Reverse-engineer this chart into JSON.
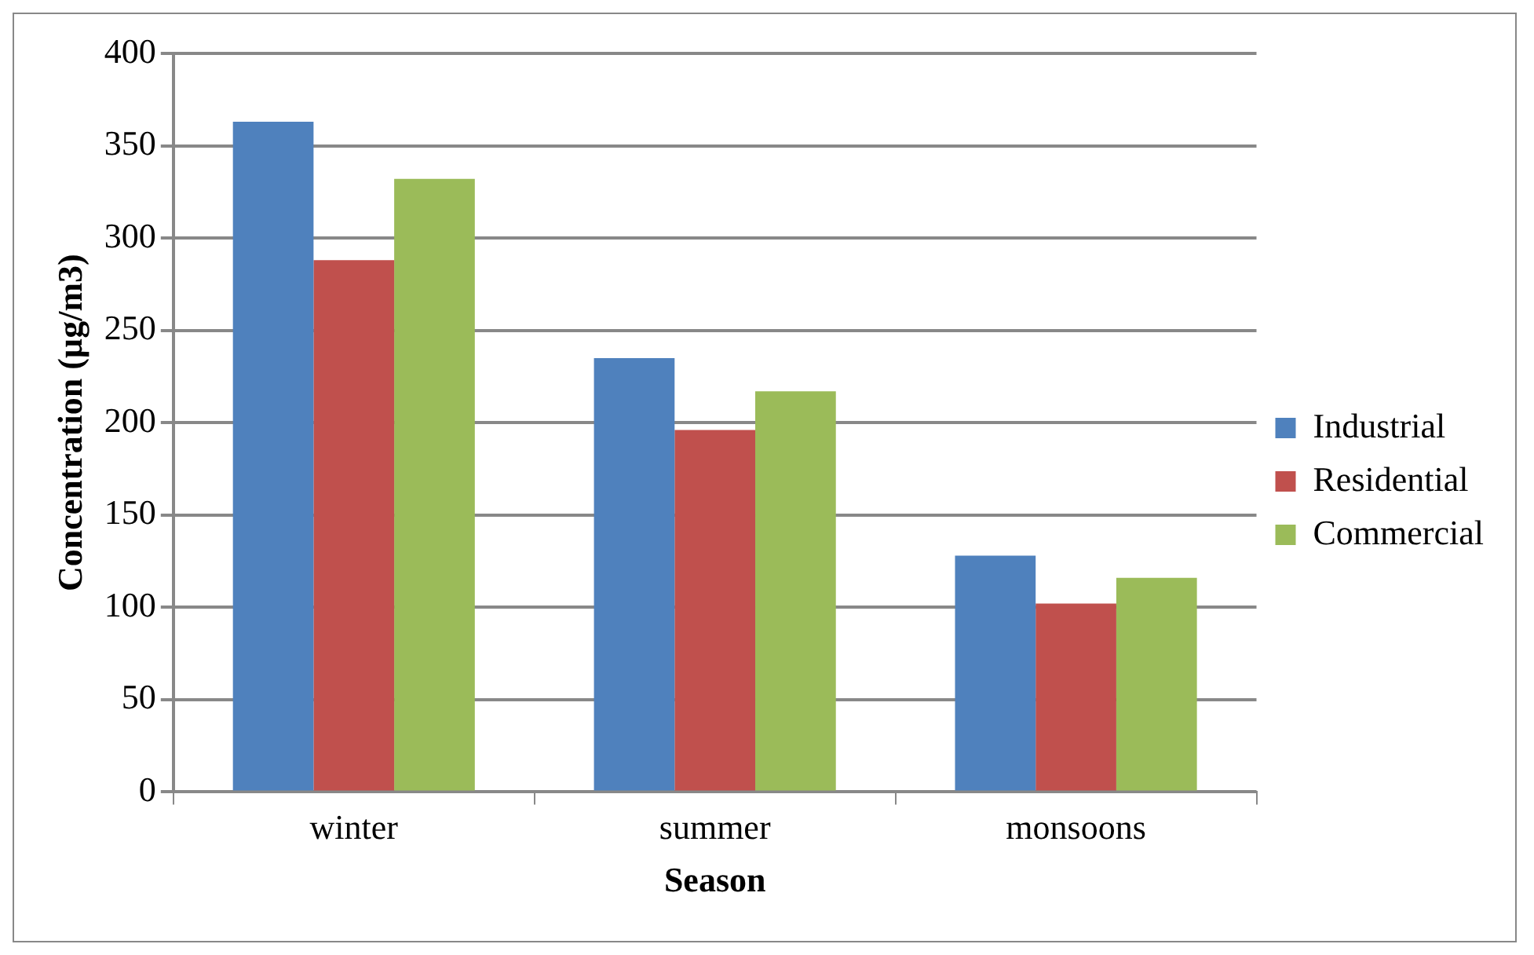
{
  "chart_data": {
    "type": "bar",
    "xlabel": "Season",
    "ylabel": "Concentration (µg/m3)",
    "categories": [
      "winter",
      "summer",
      "monsoons"
    ],
    "series": [
      {
        "name": "Industrial",
        "color": "#4f81bd",
        "values": [
          363,
          235,
          128
        ]
      },
      {
        "name": "Residential",
        "color": "#c0504d",
        "values": [
          288,
          196,
          102
        ]
      },
      {
        "name": "Commercial",
        "color": "#9bbb59",
        "values": [
          332,
          217,
          116
        ]
      }
    ],
    "ylim": [
      0,
      400
    ],
    "yticks": [
      0,
      50,
      100,
      150,
      200,
      250,
      300,
      350,
      400
    ],
    "grid": "y",
    "legend": "right"
  }
}
